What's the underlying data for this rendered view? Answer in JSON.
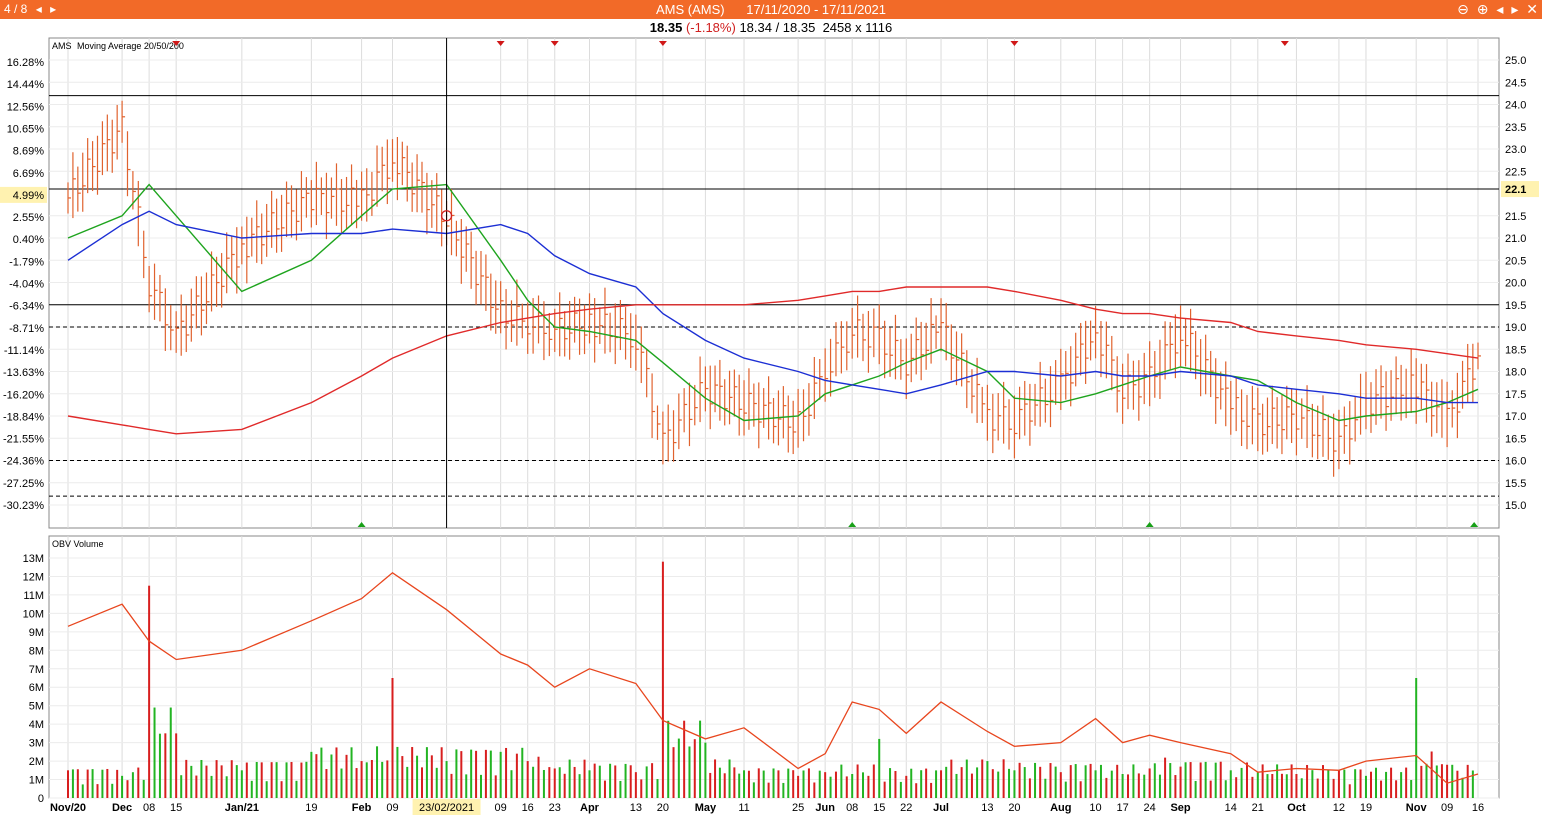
{
  "window": {
    "counter": "4 / 8",
    "title": "AMS (AMS)",
    "date_range": "17/11/2020 - 17/11/2021",
    "controls": [
      "⊖",
      "⊕",
      "◂",
      "▸",
      "✕"
    ]
  },
  "info": {
    "last_price": "18.35",
    "change": "(-1.18%)",
    "bid_ask": "18.34 / 18.35",
    "size": "2458 x 1116"
  },
  "colors": {
    "price_bars": "#e0622e",
    "ma20": "#1ea41e",
    "ma50": "#1c2fd4",
    "ma200": "#e02a2a",
    "obv_line": "#e8461e",
    "volume_up": "#22b422",
    "volume_down": "#d81e1e",
    "titlebar": "#f26a28"
  },
  "price_panel": {
    "legend_symbol": "AMS",
    "legend_text": "Moving Average 20/50/200",
    "right_axis_ticks": [
      "25.0",
      "24.5",
      "24.0",
      "23.5",
      "23.0",
      "22.5",
      "22.1",
      "21.5",
      "21.0",
      "20.5",
      "20.0",
      "19.5",
      "19.0",
      "18.5",
      "18.0",
      "17.5",
      "17.0",
      "16.5",
      "16.0",
      "15.5",
      "15.0"
    ],
    "highlight_price": "22.1",
    "left_axis_ticks": [
      "16.28%",
      "14.44%",
      "12.56%",
      "10.65%",
      "8.69%",
      "6.69%",
      "4.99%",
      "2.55%",
      "0.40%",
      "-1.79%",
      "-4.04%",
      "-6.34%",
      "-8.71%",
      "-11.14%",
      "-13.63%",
      "-16.20%",
      "-18.84%",
      "-21.55%",
      "-24.36%",
      "-27.25%",
      "-30.23%"
    ],
    "highlight_percent": "4.99%"
  },
  "volume_panel": {
    "legend_text": "OBV Volume",
    "y_ticks": [
      "13M",
      "12M",
      "11M",
      "10M",
      "9M",
      "8M",
      "7M",
      "6M",
      "5M",
      "4M",
      "3M",
      "2M",
      "1M",
      "0"
    ]
  },
  "x_axis": {
    "labels": [
      "Nov/20",
      "Dec",
      "08",
      "15",
      "Jan/21",
      "19",
      "Feb",
      "09",
      "23/02/2021",
      "09",
      "16",
      "23",
      "Apr",
      "13",
      "20",
      "May",
      "11",
      "25",
      "Jun",
      "08",
      "15",
      "22",
      "Jul",
      "13",
      "20",
      "Aug",
      "10",
      "17",
      "24",
      "Sep",
      "14",
      "21",
      "Oct",
      "12",
      "19",
      "Nov",
      "09",
      "16"
    ],
    "crosshair_label": "23/02/2021"
  },
  "chart_data": [
    {
      "type": "line",
      "title": "AMS Moving Average 20/50/200",
      "x": [
        "2020-11-17",
        "2020-12-01",
        "2020-12-08",
        "2020-12-15",
        "2021-01-01",
        "2021-01-19",
        "2021-02-01",
        "2021-02-09",
        "2021-02-23",
        "2021-03-09",
        "2021-03-16",
        "2021-03-23",
        "2021-04-01",
        "2021-04-13",
        "2021-04-20",
        "2021-05-01",
        "2021-05-11",
        "2021-05-25",
        "2021-06-01",
        "2021-06-08",
        "2021-06-15",
        "2021-06-22",
        "2021-07-01",
        "2021-07-13",
        "2021-07-20",
        "2021-08-01",
        "2021-08-10",
        "2021-08-17",
        "2021-08-24",
        "2021-09-01",
        "2021-09-14",
        "2021-09-21",
        "2021-10-01",
        "2021-10-12",
        "2021-10-19",
        "2021-11-01",
        "2021-11-09",
        "2021-11-17"
      ],
      "series": [
        {
          "name": "AMS",
          "values": [
            21.9,
            23.5,
            20.0,
            18.8,
            20.8,
            21.9,
            21.8,
            22.8,
            21.4,
            19.3,
            19.1,
            18.9,
            19.1,
            18.8,
            16.4,
            17.6,
            17.3,
            16.8,
            18.0,
            18.9,
            18.7,
            18.2,
            19.0,
            17.0,
            16.9,
            17.7,
            18.9,
            17.6,
            17.8,
            18.9,
            17.2,
            16.8,
            17.0,
            16.4,
            17.3,
            17.7,
            16.9,
            18.35
          ]
        },
        {
          "name": "MA20",
          "values": [
            21.0,
            21.5,
            22.2,
            21.5,
            19.8,
            20.5,
            21.5,
            22.1,
            22.2,
            20.5,
            19.6,
            19.0,
            18.9,
            18.7,
            18.2,
            17.4,
            16.9,
            17.0,
            17.5,
            17.7,
            17.9,
            18.2,
            18.5,
            18.0,
            17.4,
            17.3,
            17.5,
            17.7,
            17.9,
            18.1,
            17.9,
            17.8,
            17.3,
            16.9,
            17.0,
            17.1,
            17.3,
            17.6
          ]
        },
        {
          "name": "MA50",
          "values": [
            20.5,
            21.3,
            21.6,
            21.3,
            21.0,
            21.1,
            21.1,
            21.2,
            21.1,
            21.3,
            21.1,
            20.6,
            20.2,
            19.9,
            19.3,
            18.7,
            18.3,
            18.0,
            17.8,
            17.7,
            17.6,
            17.5,
            17.7,
            18.0,
            18.0,
            17.9,
            18.0,
            17.9,
            17.9,
            18.0,
            17.9,
            17.7,
            17.6,
            17.5,
            17.4,
            17.4,
            17.3,
            17.3
          ]
        },
        {
          "name": "MA200",
          "values": [
            17.0,
            16.8,
            16.7,
            16.6,
            16.7,
            17.3,
            17.9,
            18.3,
            18.8,
            19.1,
            19.2,
            19.3,
            19.4,
            19.5,
            19.5,
            19.5,
            19.5,
            19.6,
            19.7,
            19.8,
            19.8,
            19.9,
            19.9,
            19.9,
            19.8,
            19.6,
            19.4,
            19.3,
            19.3,
            19.2,
            19.1,
            18.9,
            18.8,
            18.7,
            18.6,
            18.5,
            18.4,
            18.3
          ]
        }
      ],
      "ylim": [
        15.0,
        25.0
      ],
      "reference_lines": [
        24.2,
        22.1,
        19.5,
        19.0,
        16.0,
        15.2
      ]
    },
    {
      "type": "bar",
      "title": "OBV Volume",
      "x": [
        "2020-11-17",
        "2020-12-01",
        "2020-12-08",
        "2020-12-15",
        "2021-01-01",
        "2021-01-19",
        "2021-02-01",
        "2021-02-09",
        "2021-02-23",
        "2021-03-09",
        "2021-03-16",
        "2021-03-23",
        "2021-04-01",
        "2021-04-13",
        "2021-04-20",
        "2021-05-01",
        "2021-05-11",
        "2021-05-25",
        "2021-06-01",
        "2021-06-08",
        "2021-06-15",
        "2021-06-22",
        "2021-07-01",
        "2021-07-13",
        "2021-07-20",
        "2021-08-01",
        "2021-08-10",
        "2021-08-17",
        "2021-08-24",
        "2021-09-01",
        "2021-09-14",
        "2021-09-21",
        "2021-10-01",
        "2021-10-12",
        "2021-10-19",
        "2021-11-01",
        "2021-11-09",
        "2021-11-17"
      ],
      "series": [
        {
          "name": "Volume",
          "values": [
            1.5,
            1.2,
            11.5,
            3.5,
            1.5,
            2.5,
            2.0,
            6.5,
            2.0,
            2.5,
            2.0,
            1.6,
            1.5,
            1.4,
            12.8,
            3.0,
            1.5,
            1.2,
            1.4,
            1.3,
            3.2,
            1.2,
            1.5,
            2.0,
            1.5,
            1.4,
            1.5,
            1.3,
            1.6,
            1.7,
            1.5,
            1.4,
            1.3,
            1.5,
            1.2,
            6.5,
            1.8,
            1.3
          ]
        },
        {
          "name": "OBV",
          "values": [
            9.3,
            10.5,
            8.5,
            7.5,
            8.0,
            9.6,
            10.8,
            12.2,
            10.2,
            7.8,
            7.2,
            6.0,
            7.0,
            6.2,
            4.2,
            3.2,
            3.8,
            1.6,
            2.4,
            5.2,
            4.8,
            3.5,
            5.2,
            3.6,
            2.8,
            3.0,
            4.3,
            3.0,
            3.4,
            3.0,
            2.4,
            1.4,
            1.6,
            1.5,
            2.0,
            2.3,
            0.8,
            1.3
          ]
        }
      ],
      "ylim": [
        0,
        13.5
      ],
      "ylabel": ""
    }
  ]
}
